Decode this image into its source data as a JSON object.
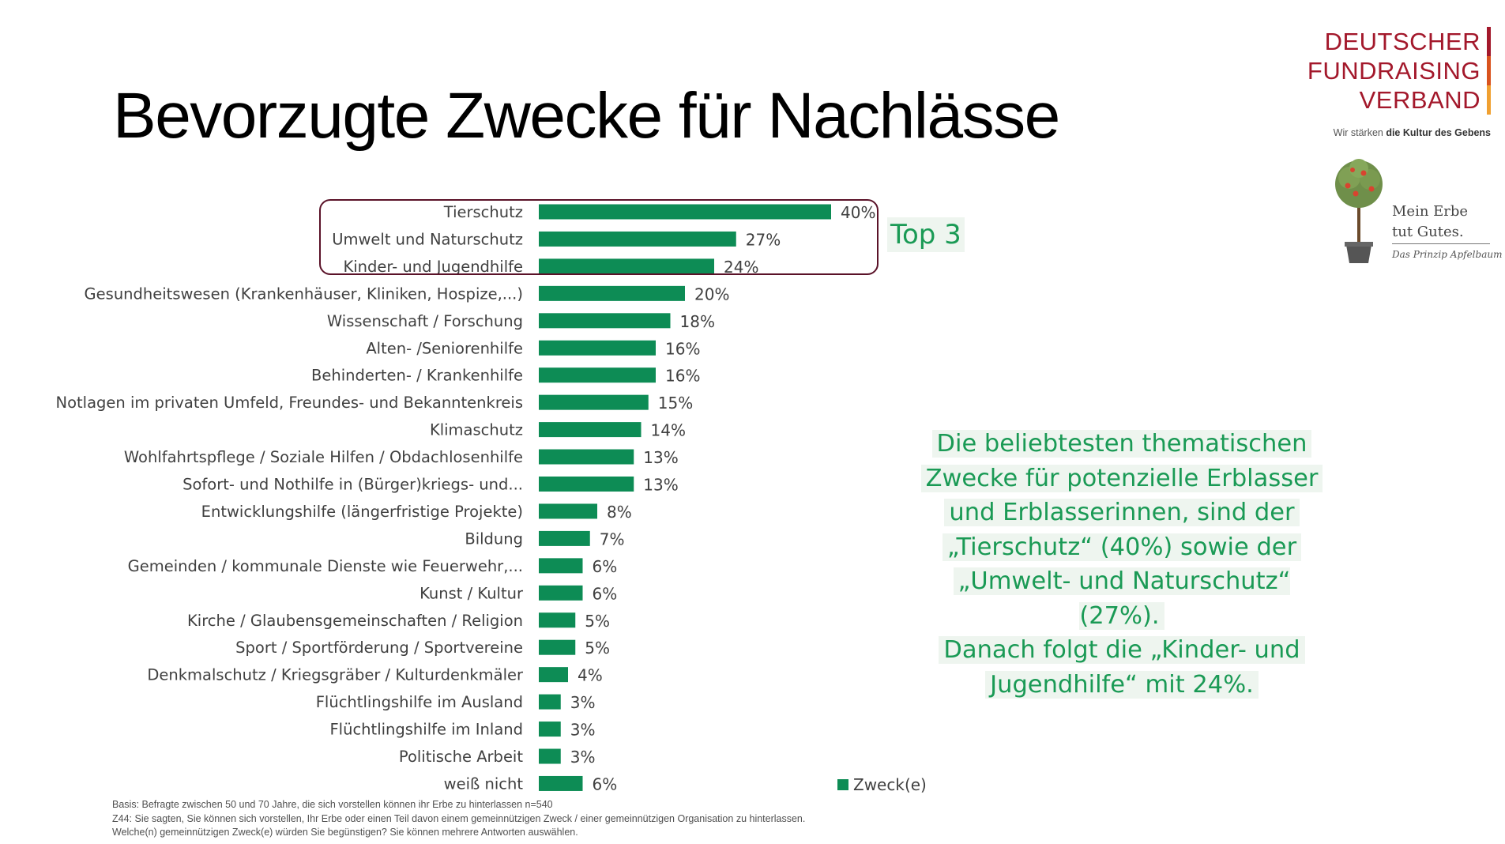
{
  "title": "Bevorzugte Zwecke für Nachlässe",
  "callout": "Top 3",
  "summary_lines": [
    "Die beliebtesten thematischen",
    "Zwecke für potenzielle Erblasser",
    "und Erblasserinnen, sind der",
    "„Tierschutz“ (40%) sowie der",
    "„Umwelt- und Naturschutz“ (27%).",
    "Danach folgt die „Kinder- und",
    "Jugendhilfe“ mit 24%."
  ],
  "footnote": [
    "Basis: Befragte zwischen 50 und 70 Jahre, die sich vorstellen können ihr Erbe zu hinterlassen n=540",
    "Z44: Sie sagten, Sie können sich vorstellen, Ihr Erbe oder einen Teil davon einem gemeinnützigen Zweck / einer gemeinnützigen Organisation zu hinterlassen.",
    "Welche(n) gemeinnützigen Zweck(e) würden Sie begünstigen? Sie können mehrere Antworten auswählen."
  ],
  "logo": {
    "lines": [
      "DEUTSCHER",
      "FUNDRAISING",
      "VERBAND"
    ],
    "tagline_prefix": "Wir stärken ",
    "tagline_bold": "die Kultur des Gebens",
    "bar_colors": [
      "#a3182b",
      "#d9531e",
      "#f0a030"
    ]
  },
  "erbe": {
    "title_lines": [
      "Mein Erbe",
      "tut Gutes."
    ],
    "subtitle": "Das Prinzip Apfelbaum"
  },
  "colors": {
    "bar": "#0d8c55",
    "accent_text": "#1a9a55",
    "highlight_border": "#5a1228"
  },
  "chart_data": {
    "type": "bar",
    "orientation": "horizontal",
    "categories": [
      "Tierschutz",
      "Umwelt und Naturschutz",
      "Kinder- und Jugendhilfe",
      "Gesundheitswesen (Krankenhäuser, Kliniken, Hospize,...)",
      "Wissenschaft / Forschung",
      "Alten- /Seniorenhilfe",
      "Behinderten- / Krankenhilfe",
      "Notlagen im privaten Umfeld, Freundes- und Bekanntenkreis",
      "Klimaschutz",
      "Wohlfahrtspflege / Soziale Hilfen / Obdachlosenhilfe",
      "Sofort- und Nothilfe in (Bürger)kriegs- und...",
      "Entwicklungshilfe (längerfristige Projekte)",
      "Bildung",
      "Gemeinden / kommunale Dienste wie Feuerwehr,...",
      "Kunst / Kultur",
      "Kirche / Glaubensgemeinschaften / Religion",
      "Sport / Sportförderung / Sportvereine",
      "Denkmalschutz / Kriegsgräber / Kulturdenkmäler",
      "Flüchtlingshilfe im Ausland",
      "Flüchtlingshilfe im Inland",
      "Politische Arbeit",
      "weiß nicht"
    ],
    "series": [
      {
        "name": "Zweck(e)",
        "values": [
          40,
          27,
          24,
          20,
          18,
          16,
          16,
          15,
          14,
          13,
          13,
          8,
          7,
          6,
          6,
          5,
          5,
          4,
          3,
          3,
          3,
          6
        ],
        "labels": [
          "40%",
          "27%",
          "24%",
          "20%",
          "18%",
          "16%",
          "16%",
          "15%",
          "14%",
          "13%",
          "13%",
          "8%",
          "7%",
          "6%",
          "6%",
          "5%",
          "5%",
          "4%",
          "3%",
          "3%",
          "3%",
          "6%"
        ]
      }
    ],
    "unit": "%",
    "xlim": [
      0,
      40
    ],
    "grid": false,
    "legend": "bottom-right",
    "highlighted": [
      "Tierschutz",
      "Umwelt und Naturschutz",
      "Kinder- und Jugendhilfe"
    ]
  }
}
